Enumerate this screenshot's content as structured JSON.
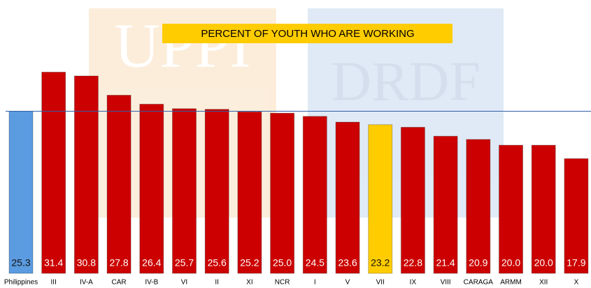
{
  "chart_data": {
    "type": "bar",
    "title": "PERCENT OF YOUTH WHO ARE WORKING",
    "categories": [
      "Philippines",
      "III",
      "IV-A",
      "CAR",
      "IV-B",
      "VI",
      "II",
      "XI",
      "NCR",
      "I",
      "V",
      "VII",
      "IX",
      "VIII",
      "CARAGA",
      "ARMM",
      "XII",
      "X"
    ],
    "values": [
      25.3,
      31.4,
      30.8,
      27.8,
      26.4,
      25.7,
      25.6,
      25.2,
      25.0,
      24.5,
      23.6,
      23.2,
      22.8,
      21.4,
      20.9,
      20.0,
      20.0,
      17.9
    ],
    "value_labels": [
      "25.3",
      "31.4",
      "30.8",
      "27.8",
      "26.4",
      "25.7",
      "25.6",
      "25.2",
      "25.0",
      "24.5",
      "23.6",
      "23.2",
      "22.8",
      "21.4",
      "20.9",
      "20.0",
      "20.0",
      "17.9"
    ],
    "colors": [
      "#5b9be0",
      "#cc0000",
      "#cc0000",
      "#cc0000",
      "#cc0000",
      "#cc0000",
      "#cc0000",
      "#cc0000",
      "#cc0000",
      "#cc0000",
      "#cc0000",
      "#ffcc00",
      "#cc0000",
      "#cc0000",
      "#cc0000",
      "#cc0000",
      "#cc0000",
      "#cc0000"
    ]
  }
}
